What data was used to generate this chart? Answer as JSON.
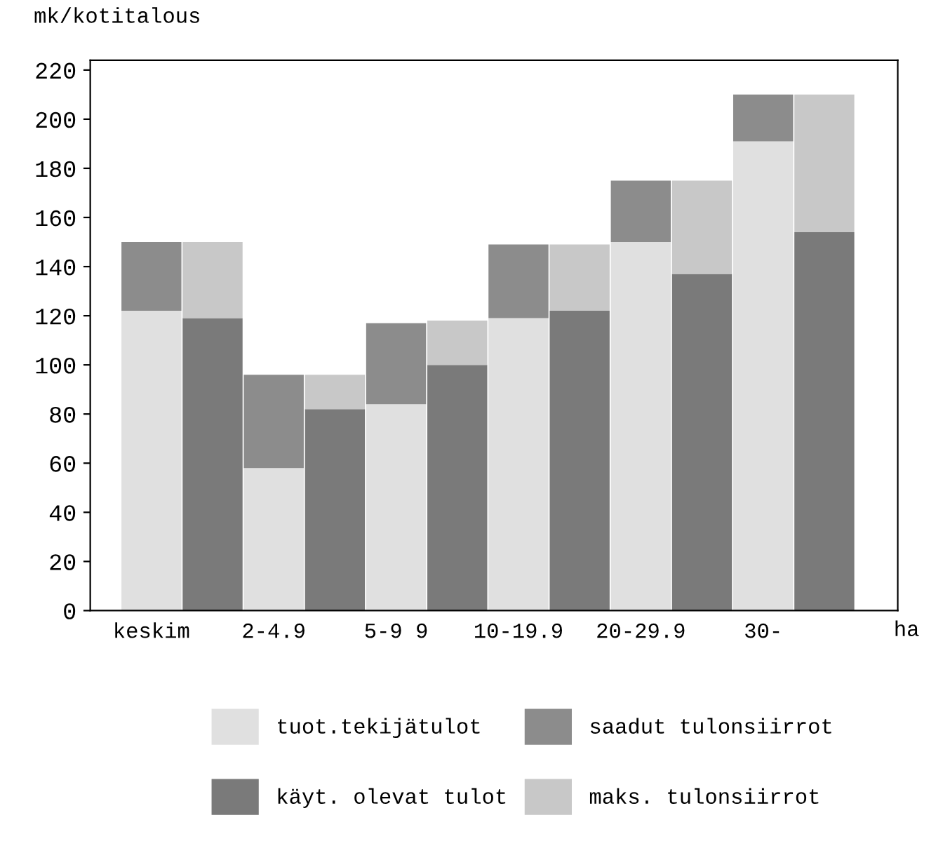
{
  "chart_data": {
    "type": "bar",
    "stacked": true,
    "ylabel": "mk/kotitalous",
    "xlabel": "ha",
    "categories": [
      "keskim",
      null,
      "2-4.9",
      null,
      "5-9 9",
      null,
      "10-19.9",
      null,
      "20-29.9",
      null,
      "30-",
      null
    ],
    "series": [
      {
        "name": "tuot.tekijätulot",
        "color": "#e0e0e0",
        "values": [
          122,
          null,
          58,
          null,
          84,
          null,
          119,
          null,
          150,
          null,
          191,
          null
        ]
      },
      {
        "name": "saadut tulonsiirrot",
        "color": "#8c8c8c",
        "values": [
          28,
          null,
          38,
          null,
          33,
          null,
          30,
          null,
          25,
          null,
          19,
          null
        ]
      },
      {
        "name": "käyt. olevat tulot",
        "color": "#7a7a7a",
        "values": [
          null,
          119,
          null,
          82,
          null,
          100,
          null,
          122,
          null,
          137,
          null,
          154
        ]
      },
      {
        "name": "maks. tulonsiirrot",
        "color": "#c8c8c8",
        "values": [
          null,
          31,
          null,
          14,
          null,
          18,
          null,
          27,
          null,
          38,
          null,
          56
        ]
      }
    ],
    "ylim": [
      0,
      224
    ],
    "yticks": [
      0,
      20,
      40,
      60,
      80,
      100,
      120,
      140,
      160,
      180,
      200,
      220
    ],
    "grid": false,
    "legend": "bottom"
  }
}
